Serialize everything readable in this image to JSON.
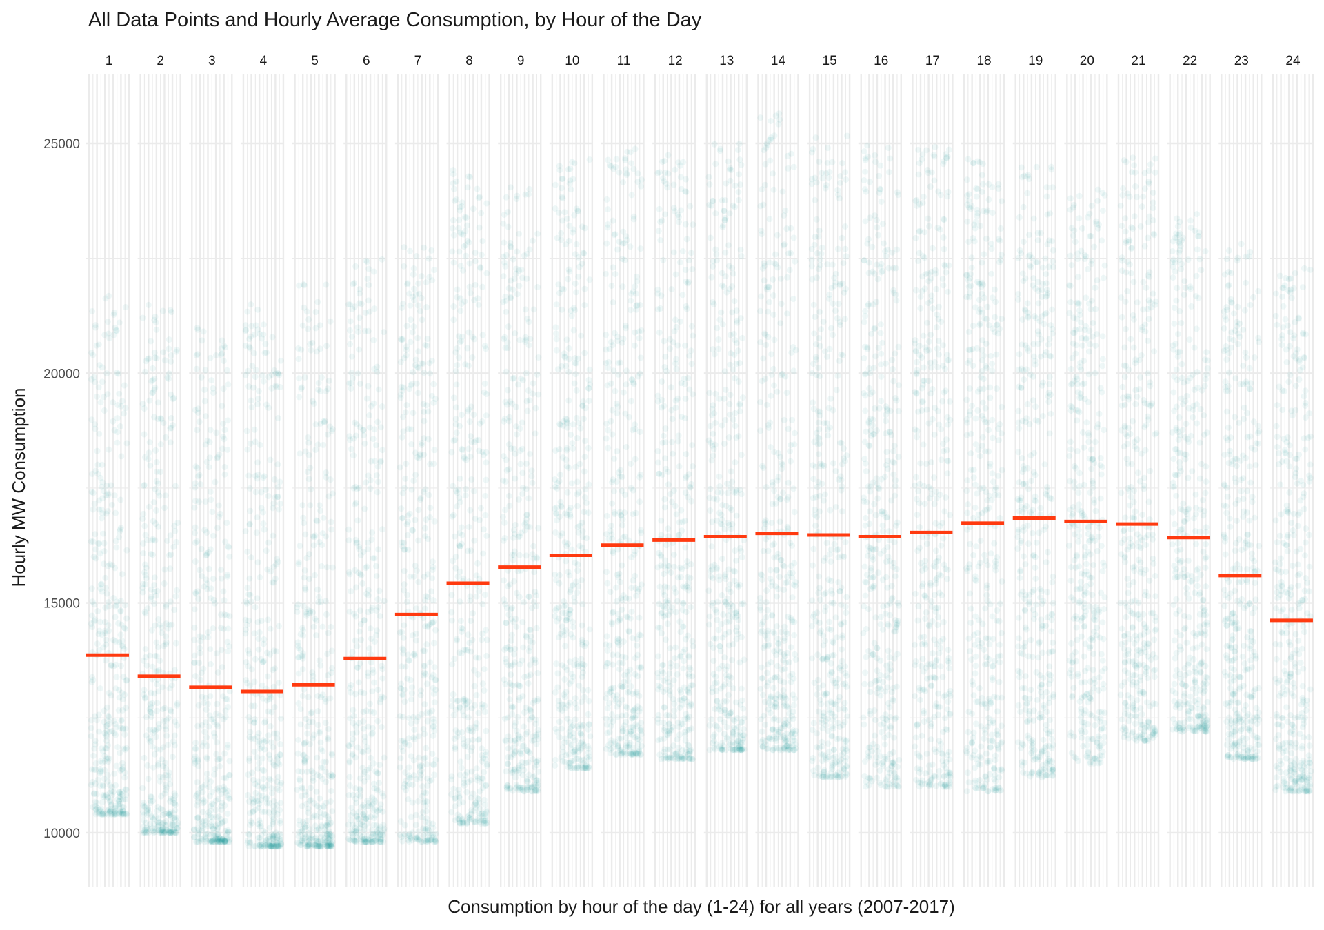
{
  "chart_data": {
    "type": "scatter",
    "title": "All Data Points and Hourly Average Consumption, by Hour of the Day",
    "xlabel": "Consumption by hour of the day (1-24) for all years (2007-2017)",
    "ylabel": "Hourly MW Consumption",
    "ylim": [
      8800,
      26500
    ],
    "yticks": [
      10000,
      15000,
      20000,
      25000
    ],
    "grid": true,
    "facets": [
      "1",
      "2",
      "3",
      "4",
      "5",
      "6",
      "7",
      "8",
      "9",
      "10",
      "11",
      "12",
      "13",
      "14",
      "15",
      "16",
      "17",
      "18",
      "19",
      "20",
      "21",
      "22",
      "23",
      "24"
    ],
    "hourly_mean": [
      13865,
      13405,
      13166,
      13074,
      13221,
      13791,
      14748,
      15429,
      15779,
      16037,
      16258,
      16368,
      16442,
      16515,
      16479,
      16442,
      16534,
      16736,
      16847,
      16773,
      16718,
      16423,
      15595,
      14620
    ],
    "hourly_min": [
      10400,
      10000,
      9800,
      9700,
      9700,
      9800,
      9800,
      10200,
      10900,
      11400,
      11700,
      11600,
      11800,
      11800,
      11200,
      11000,
      11000,
      10900,
      11200,
      11500,
      12000,
      12200,
      11600,
      10900
    ],
    "hourly_max": [
      21800,
      21500,
      21200,
      21500,
      22000,
      22500,
      23000,
      24500,
      24300,
      24700,
      24900,
      24800,
      25000,
      25700,
      25200,
      25000,
      25000,
      24700,
      24500,
      24000,
      24700,
      23500,
      22900,
      22300
    ],
    "colors": {
      "points": "#1a9e9e",
      "mean_line": "#ff3a10",
      "grid": "#ebebeb",
      "text": "#1a1a1a",
      "tick_text": "#4d4d4d"
    }
  }
}
